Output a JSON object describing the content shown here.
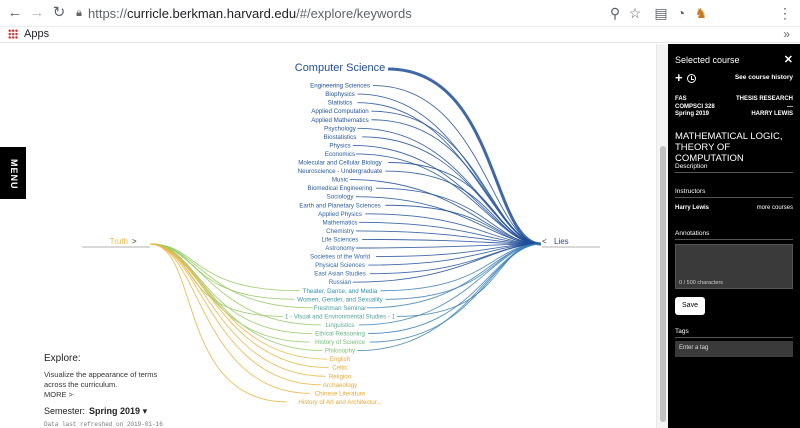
{
  "browser": {
    "url_prefix": "https://",
    "url_main": "curricle.berkman.harvard.edu",
    "url_path": "/#/explore/keywords",
    "bookmarks_label": "Apps",
    "bookmarks_more": "»"
  },
  "menu_label": "MENU",
  "explore": {
    "title": "Explore:",
    "description": "Visualize the appearance of terms across the curriculum.",
    "more": "MORE >",
    "semester_label": "Semester:",
    "semester_value": "Spring 2019",
    "refreshed": "Data last refreshed on 2019-01-16"
  },
  "viz": {
    "left_term": "Truth",
    "right_term": "Lies",
    "left_color": "#e8b84a",
    "right_color": "#1f4e96",
    "subjects": [
      {
        "label": "Computer Science",
        "weight": 1.0,
        "side": "right"
      },
      {
        "label": "Engineering Sciences",
        "weight": 0.55,
        "side": "right"
      },
      {
        "label": "Biophysics",
        "weight": 0.45,
        "side": "right"
      },
      {
        "label": "Statistics",
        "weight": 0.45,
        "side": "right"
      },
      {
        "label": "Applied Computation",
        "weight": 0.4,
        "side": "right"
      },
      {
        "label": "Applied Mathematics",
        "weight": 0.4,
        "side": "right"
      },
      {
        "label": "Psychology",
        "weight": 0.35,
        "side": "right"
      },
      {
        "label": "Biostatistics",
        "weight": 0.35,
        "side": "right"
      },
      {
        "label": "Physics",
        "weight": 0.35,
        "side": "right"
      },
      {
        "label": "Economics",
        "weight": 0.3,
        "side": "right"
      },
      {
        "label": "Molecular and Cellular Biology",
        "weight": 0.3,
        "side": "right"
      },
      {
        "label": "Neuroscience - Undergraduate",
        "weight": 0.3,
        "side": "right"
      },
      {
        "label": "Music",
        "weight": 0.3,
        "side": "right"
      },
      {
        "label": "Biomedical Engineering",
        "weight": 0.3,
        "side": "right"
      },
      {
        "label": "Sociology",
        "weight": 0.3,
        "side": "right"
      },
      {
        "label": "Earth and Planetary Sciences",
        "weight": 0.3,
        "side": "right"
      },
      {
        "label": "Applied Physics",
        "weight": 0.3,
        "side": "right"
      },
      {
        "label": "Mathematics",
        "weight": 0.3,
        "side": "right"
      },
      {
        "label": "Chemistry",
        "weight": 0.3,
        "side": "right"
      },
      {
        "label": "Life Sciences",
        "weight": 0.3,
        "side": "right"
      },
      {
        "label": "Astronomy",
        "weight": 0.3,
        "side": "right"
      },
      {
        "label": "Societies of the World",
        "weight": 0.3,
        "side": "right"
      },
      {
        "label": "Physical Sciences",
        "weight": 0.3,
        "side": "right"
      },
      {
        "label": "East Asian Studies",
        "weight": 0.3,
        "side": "right"
      },
      {
        "label": "Russian",
        "weight": 0.3,
        "side": "right"
      },
      {
        "label": "Theater, Dance, and Media",
        "weight": 0.3,
        "side": "both"
      },
      {
        "label": "Women, Gender, and Sexuality",
        "weight": 0.3,
        "side": "both"
      },
      {
        "label": "Freshman Seminar",
        "weight": 0.3,
        "side": "both"
      },
      {
        "label": "1 - Visual and Environmental Studies - 1",
        "weight": 0.3,
        "side": "both"
      },
      {
        "label": "Linguistics",
        "weight": 0.3,
        "side": "both"
      },
      {
        "label": "Ethical Reasoning",
        "weight": 0.3,
        "side": "both"
      },
      {
        "label": "History of Science",
        "weight": 0.3,
        "side": "both"
      },
      {
        "label": "Philosophy",
        "weight": 0.3,
        "side": "both"
      },
      {
        "label": "English",
        "weight": 0.3,
        "side": "left"
      },
      {
        "label": "Celtic",
        "weight": 0.3,
        "side": "left"
      },
      {
        "label": "Religion",
        "weight": 0.3,
        "side": "left"
      },
      {
        "label": "Archaeology",
        "weight": 0.3,
        "side": "left"
      },
      {
        "label": "Chinese Literature",
        "weight": 0.3,
        "side": "left"
      },
      {
        "label": "History of Art and Architectur...",
        "weight": 0.3,
        "side": "left"
      }
    ]
  },
  "sidebar": {
    "title": "Selected course",
    "close_icon": "✕",
    "add_icon": "+",
    "history_link": "See course history",
    "school": "FAS",
    "course_code": "COMPSCI 328",
    "term": "Spring 2019",
    "course_type": "THESIS RESEARCH",
    "dash": "—",
    "instructor_upper": "HARRY LEWIS",
    "course_title": "MATHEMATICAL LOGIC, THEORY OF COMPUTATION",
    "description_label": "Description",
    "instructors_label": "Instructors",
    "instructor_name": "Harry Lewis",
    "more_courses": "more courses",
    "annotations_label": "Annotations",
    "annotation_count": "0 / 500 characters",
    "save_label": "Save",
    "tags_label": "Tags",
    "tag_placeholder": "Enter a tag"
  }
}
